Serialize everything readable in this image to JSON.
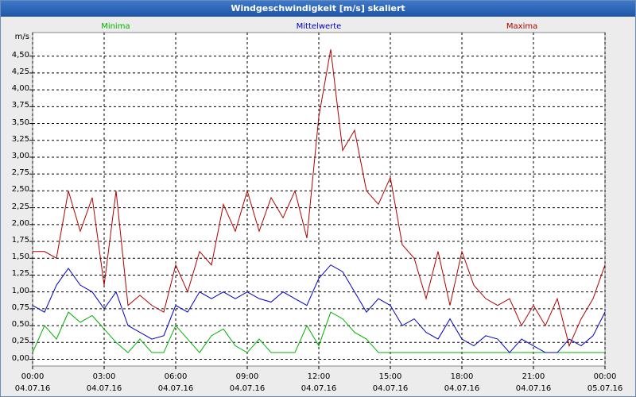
{
  "chart_data": {
    "type": "line",
    "title": "Windgeschwindigkeit [m/s] skaliert",
    "y_label": "m/s",
    "x": [
      0,
      0.5,
      1,
      1.5,
      2,
      2.5,
      3,
      3.5,
      4,
      4.5,
      5,
      5.5,
      6,
      6.5,
      7,
      7.5,
      8,
      8.5,
      9,
      9.5,
      10,
      10.5,
      11,
      11.5,
      12,
      12.5,
      13,
      13.5,
      14,
      14.5,
      15,
      15.5,
      16,
      16.5,
      17,
      17.5,
      18,
      18.5,
      19,
      19.5,
      20,
      20.5,
      21,
      21.5,
      22,
      22.5,
      23,
      23.5,
      24
    ],
    "series": [
      {
        "name": "Minima",
        "color": "#00b000",
        "values": [
          0.1,
          0.5,
          0.3,
          0.7,
          0.55,
          0.65,
          0.45,
          0.25,
          0.1,
          0.3,
          0.1,
          0.1,
          0.5,
          0.3,
          0.1,
          0.35,
          0.45,
          0.2,
          0.1,
          0.3,
          0.1,
          0.1,
          0.1,
          0.5,
          0.2,
          0.7,
          0.6,
          0.4,
          0.3,
          0.1,
          0.1,
          0.1,
          0.1,
          0.1,
          0.1,
          0.1,
          0.1,
          0.1,
          0.1,
          0.1,
          0.1,
          0.1,
          0.1,
          0.1,
          0.1,
          0.1,
          0.1,
          0.1,
          0.1
        ]
      },
      {
        "name": "Mittelwerte",
        "color": "#0000c0",
        "values": [
          0.8,
          0.7,
          1.1,
          1.35,
          1.1,
          1.0,
          0.75,
          1.0,
          0.5,
          0.4,
          0.3,
          0.35,
          0.8,
          0.7,
          1.0,
          0.9,
          1.0,
          0.9,
          1.0,
          0.9,
          0.85,
          1.0,
          0.9,
          0.8,
          1.2,
          1.4,
          1.3,
          1.0,
          0.7,
          0.9,
          0.8,
          0.5,
          0.6,
          0.4,
          0.3,
          0.6,
          0.3,
          0.2,
          0.35,
          0.3,
          0.1,
          0.3,
          0.2,
          0.1,
          0.1,
          0.3,
          0.2,
          0.35,
          0.7
        ]
      },
      {
        "name": "Maxima",
        "color": "#b00000",
        "values": [
          1.6,
          1.6,
          1.5,
          2.5,
          1.9,
          2.4,
          1.1,
          2.5,
          0.8,
          0.95,
          0.8,
          0.7,
          1.4,
          1.0,
          1.6,
          1.4,
          2.3,
          1.9,
          2.5,
          1.9,
          2.4,
          2.1,
          2.5,
          1.8,
          3.6,
          4.6,
          3.1,
          3.4,
          2.5,
          2.3,
          2.7,
          1.7,
          1.5,
          0.9,
          1.6,
          0.8,
          1.6,
          1.1,
          0.9,
          0.8,
          0.9,
          0.5,
          0.8,
          0.5,
          0.9,
          0.2,
          0.6,
          0.9,
          1.4
        ]
      }
    ],
    "xlim": [
      0,
      24
    ],
    "xticks": [
      {
        "value": 0,
        "label": "00:00 04.07.16"
      },
      {
        "value": 3,
        "label": "03:00 04.07.16"
      },
      {
        "value": 6,
        "label": "06:00 04.07.16"
      },
      {
        "value": 9,
        "label": "09:00 04.07.16"
      },
      {
        "value": 12,
        "label": "12:00 04.07.16"
      },
      {
        "value": 15,
        "label": "15:00 04.07.16"
      },
      {
        "value": 18,
        "label": "18:00 04.07.16"
      },
      {
        "value": 21,
        "label": "21:00 04.07.16"
      },
      {
        "value": 24,
        "label": "00:00 05.07.16"
      }
    ],
    "ylim": [
      -0.1,
      4.85
    ],
    "yticks": [
      {
        "value": 0,
        "label": "0,00"
      },
      {
        "value": 0.25,
        "label": "0,25"
      },
      {
        "value": 0.5,
        "label": "0,50"
      },
      {
        "value": 0.75,
        "label": "0,75"
      },
      {
        "value": 1,
        "label": "1,00"
      },
      {
        "value": 1.25,
        "label": "1,25"
      },
      {
        "value": 1.5,
        "label": "1,50"
      },
      {
        "value": 1.75,
        "label": "1,75"
      },
      {
        "value": 2,
        "label": "2,00"
      },
      {
        "value": 2.25,
        "label": "2,25"
      },
      {
        "value": 2.5,
        "label": "2,50"
      },
      {
        "value": 2.75,
        "label": "2,75"
      },
      {
        "value": 3,
        "label": "3,00"
      },
      {
        "value": 3.25,
        "label": "3,25"
      },
      {
        "value": 3.5,
        "label": "3,50"
      },
      {
        "value": 3.75,
        "label": "3,75"
      },
      {
        "value": 4,
        "label": "4,00"
      },
      {
        "value": 4.25,
        "label": "4,25"
      },
      {
        "value": 4.5,
        "label": "4,50"
      }
    ],
    "grid": true
  }
}
